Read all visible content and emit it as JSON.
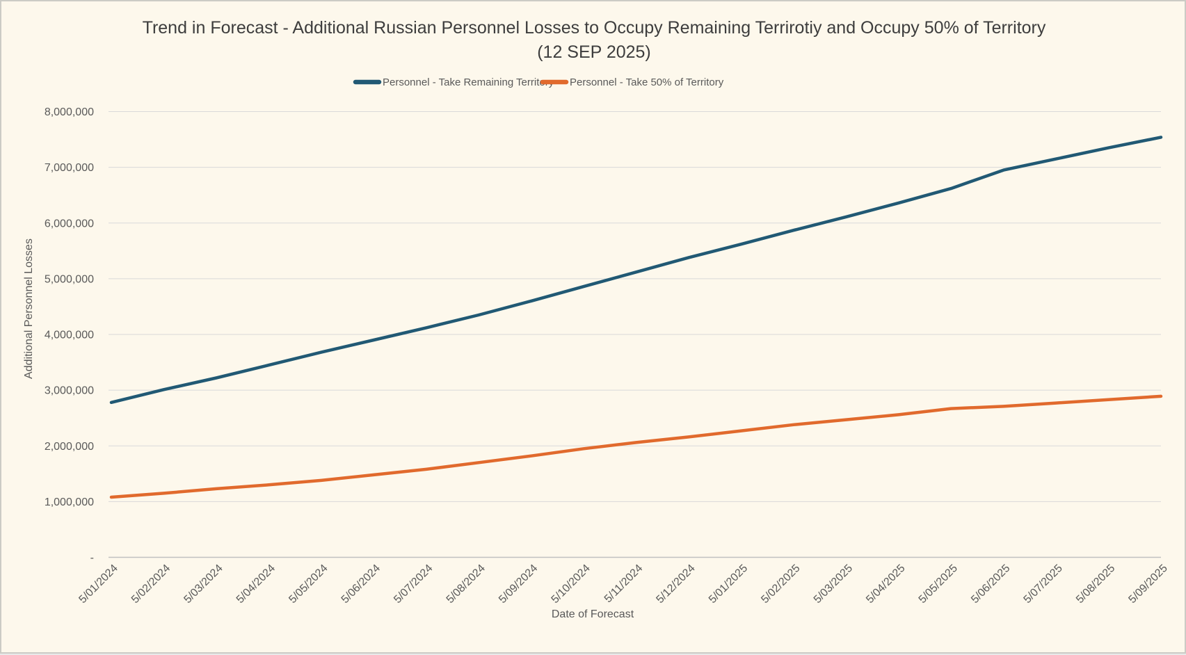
{
  "page": {
    "title_line1": "Trend in Forecast - Additional Russian Personnel Losses to Occupy Remaining Terrirotiy and Occupy 50% of Territory",
    "title_line2": "(12 SEP 2025)"
  },
  "colors": {
    "background": "#fdf8ec",
    "border": "#cccbc5",
    "gridline": "#d9d9d9",
    "axis_line": "#c0c0c0",
    "title_text": "#3d3d3d",
    "tick_text": "#595959",
    "series_remaining": "#215974",
    "series_fifty_pct": "#e16a2d"
  },
  "chart_data": {
    "type": "line",
    "title": "Trend in Forecast - Additional Russian Personnel Losses to Occupy Remaining Terrirotiy and Occupy 50% of Territory (12 SEP 2025)",
    "xlabel": "Date of Forecast",
    "ylabel": "Additional Personnel Losses",
    "ylim": [
      0,
      8000000
    ],
    "ytick_step": 1000000,
    "ytick_zero_label": "-",
    "grid": true,
    "legend_position": "top",
    "categories": [
      "5/01/2024",
      "5/02/2024",
      "5/03/2024",
      "5/04/2024",
      "5/05/2024",
      "5/06/2024",
      "5/07/2024",
      "5/08/2024",
      "5/09/2024",
      "5/10/2024",
      "5/11/2024",
      "5/12/2024",
      "5/01/2025",
      "5/02/2025",
      "5/03/2025",
      "5/04/2025",
      "5/05/2025",
      "5/06/2025",
      "5/07/2025",
      "5/08/2025",
      "5/09/2025"
    ],
    "series": [
      {
        "name": "Personnel - Take Remaining Territory",
        "color": "#215974",
        "values": [
          2780000,
          3010000,
          3220000,
          3450000,
          3680000,
          3900000,
          4120000,
          4350000,
          4600000,
          4860000,
          5120000,
          5380000,
          5620000,
          5870000,
          6110000,
          6360000,
          6620000,
          6950000,
          7150000,
          7350000,
          7540000
        ]
      },
      {
        "name": "Personnel - Take 50% of Territory",
        "color": "#e16a2d",
        "values": [
          1080000,
          1150000,
          1230000,
          1300000,
          1380000,
          1480000,
          1580000,
          1700000,
          1820000,
          1950000,
          2060000,
          2160000,
          2270000,
          2380000,
          2470000,
          2560000,
          2670000,
          2710000,
          2770000,
          2830000,
          2890000
        ]
      }
    ]
  }
}
